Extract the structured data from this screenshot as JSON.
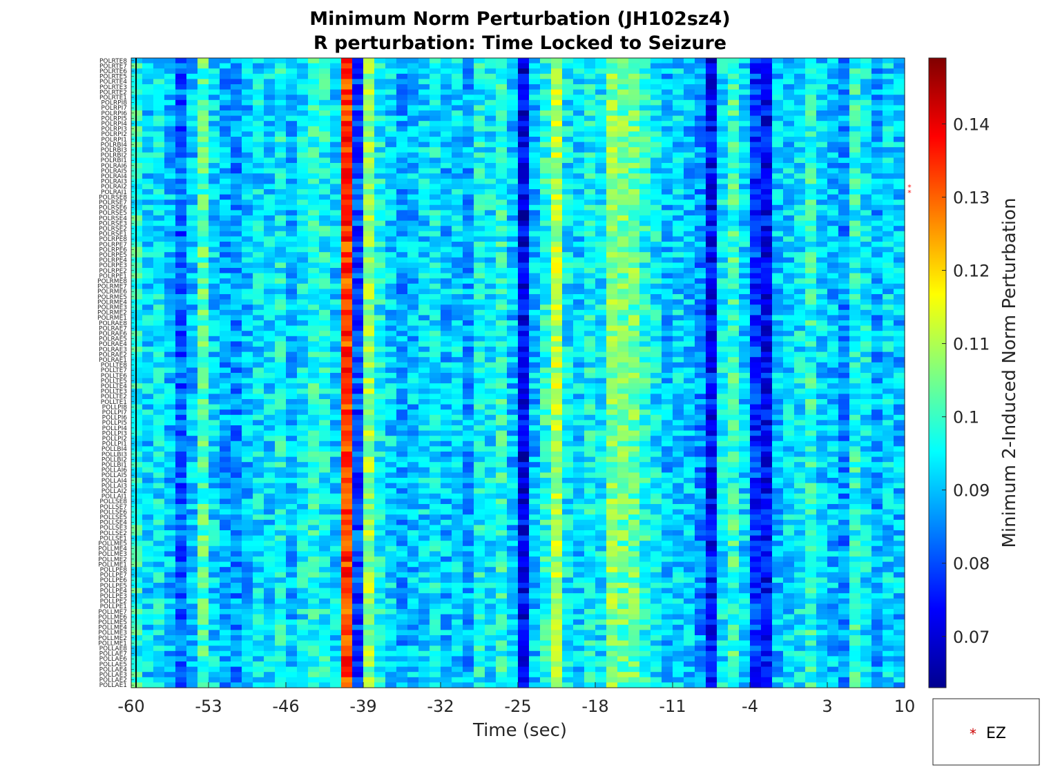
{
  "chart_data": {
    "type": "heatmap",
    "title_line1": "Minimum Norm Perturbation (JH102sz4)",
    "title_line2": "R perturbation:  Time Locked to Seizure",
    "xlabel": "Time (sec)",
    "colorbar_label": "Minimum 2-Induced Norm Perturbation",
    "x_ticks": [
      "-60",
      "-53",
      "-46",
      "-39",
      "-32",
      "-25",
      "-18",
      "-11",
      "-4",
      "3",
      "10"
    ],
    "x_tick_values": [
      -60,
      -53,
      -46,
      -39,
      -32,
      -25,
      -18,
      -11,
      -4,
      3,
      10
    ],
    "xlim": [
      -60,
      10
    ],
    "time_step_sec": 1,
    "colorbar_ticks": [
      "0.07",
      "0.08",
      "0.09",
      "0.1",
      "0.11",
      "0.12",
      "0.13",
      "0.14"
    ],
    "colorbar_tick_values": [
      0.07,
      0.08,
      0.09,
      0.1,
      0.11,
      0.12,
      0.13,
      0.14
    ],
    "clim": [
      0.063,
      0.149
    ],
    "colormap": "jet",
    "channels": [
      "POLRTE8",
      "POLRTE7",
      "POLRTE6",
      "POLRTE5",
      "POLRTE4",
      "POLRTE3",
      "POLRTE2",
      "POLRTE1",
      "POLRPI8",
      "POLRPI7",
      "POLRPI6",
      "POLRPI5",
      "POLRPI4",
      "POLRPI3",
      "POLRPI2",
      "POLRPI1",
      "POLRBI4",
      "POLRBI3",
      "POLRBI2",
      "POLRBI1",
      "POLRAI6",
      "POLRAI5",
      "POLRAI4",
      "POLRAI3",
      "POLRAI2",
      "POLRAI1",
      "POLRSE8",
      "POLRSE7",
      "POLRSE6",
      "POLRSE5",
      "POLRSE4",
      "POLRSE3",
      "POLRSE2",
      "POLRSE1",
      "POLRPE8",
      "POLRPE7",
      "POLRPE6",
      "POLRPE5",
      "POLRPE4",
      "POLRPE3",
      "POLRPE2",
      "POLRPE1",
      "POLRME8",
      "POLRME7",
      "POLRME6",
      "POLRME5",
      "POLRME4",
      "POLRME3",
      "POLRME2",
      "POLRME1",
      "POLRAE8",
      "POLRAE7",
      "POLRAE6",
      "POLRAE5",
      "POLRAE4",
      "POLRAE3",
      "POLRAE2",
      "POLRAE1",
      "POLLTE8",
      "POLLTE7",
      "POLLTE6",
      "POLLTE5",
      "POLLTE4",
      "POLLTE3",
      "POLLTE2",
      "POLLTE1",
      "POLLPI8",
      "POLLPI7",
      "POLLPI6",
      "POLLPI5",
      "POLLPI4",
      "POLLPI3",
      "POLLPI2",
      "POLLPI1",
      "POLLBI4",
      "POLLBI3",
      "POLLBI2",
      "POLLBI1",
      "POLLAI6",
      "POLLAI5",
      "POLLAI4",
      "POLLAI3",
      "POLLAI2",
      "POLLAI1",
      "POLLSE8",
      "POLLSE7",
      "POLLSE6",
      "POLLSE5",
      "POLLSE4",
      "POLLSE3",
      "POLLSE2",
      "POLLSE1",
      "POLLME5",
      "POLLME4",
      "POLLME3",
      "POLLME2",
      "POLLME1",
      "POLLPE8",
      "POLLPE7",
      "POLLPE6",
      "POLLPE5",
      "POLLPE4",
      "POLLPE3",
      "POLLPE2",
      "POLLPE1",
      "POLLME7",
      "POLLME6",
      "POLLME5",
      "POLLME4",
      "POLLME3",
      "POLLME2",
      "POLLME1",
      "POLLAE8",
      "POLLAE7",
      "POLLAE6",
      "POLLAE5",
      "POLLAE4",
      "POLLAE3",
      "POLLAE2",
      "POLLAE1"
    ],
    "ez_channels": [
      "POLRAI2",
      "POLRAI1"
    ],
    "ez_color": "#ff0000",
    "column_profile_by_time": {
      "-60": 0.098,
      "-59": 0.092,
      "-58": 0.094,
      "-57": 0.09,
      "-56": 0.082,
      "-55": 0.09,
      "-54": 0.102,
      "-53": 0.092,
      "-52": 0.088,
      "-51": 0.086,
      "-50": 0.09,
      "-49": 0.093,
      "-48": 0.092,
      "-47": 0.096,
      "-46": 0.09,
      "-45": 0.094,
      "-44": 0.098,
      "-43": 0.096,
      "-42": 0.092,
      "-41": 0.133,
      "-40": 0.08,
      "-39": 0.108,
      "-38": 0.096,
      "-37": 0.092,
      "-36": 0.088,
      "-35": 0.09,
      "-34": 0.092,
      "-33": 0.094,
      "-32": 0.09,
      "-31": 0.092,
      "-30": 0.088,
      "-29": 0.096,
      "-28": 0.094,
      "-27": 0.098,
      "-26": 0.09,
      "-25": 0.072,
      "-24": 0.09,
      "-23": 0.098,
      "-22": 0.11,
      "-21": 0.094,
      "-20": 0.092,
      "-19": 0.096,
      "-18": 0.094,
      "-17": 0.106,
      "-16": 0.104,
      "-15": 0.104,
      "-14": 0.098,
      "-13": 0.094,
      "-12": 0.09,
      "-11": 0.092,
      "-10": 0.09,
      "-9": 0.086,
      "-8": 0.074,
      "-7": 0.094,
      "-6": 0.1,
      "-5": 0.092,
      "-4": 0.078,
      "-3": 0.074,
      "-2": 0.09,
      "-1": 0.092,
      "0": 0.094,
      "1": 0.098,
      "2": 0.092,
      "3": 0.09,
      "4": 0.086,
      "5": 0.098,
      "6": 0.094,
      "7": 0.088,
      "8": 0.092,
      "9": 0.09
    },
    "legend": {
      "entries": [
        "EZ"
      ],
      "marker": "*",
      "placement": "below-colorbar"
    }
  }
}
